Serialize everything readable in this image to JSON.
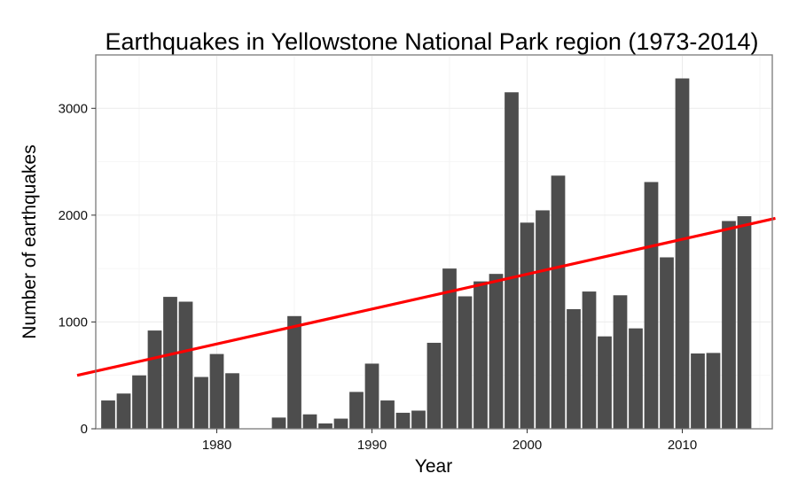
{
  "chart_data": {
    "type": "bar",
    "title": "Earthquakes in Yellowstone National Park region (1973-2014)",
    "xlabel": "Year",
    "ylabel": "Number of earthquakes",
    "x": [
      1973,
      1974,
      1975,
      1976,
      1977,
      1978,
      1979,
      1980,
      1981,
      1982,
      1983,
      1984,
      1985,
      1986,
      1987,
      1988,
      1989,
      1990,
      1991,
      1992,
      1993,
      1994,
      1995,
      1996,
      1997,
      1998,
      1999,
      2000,
      2001,
      2002,
      2003,
      2004,
      2005,
      2006,
      2007,
      2008,
      2009,
      2010,
      2011,
      2012,
      2013,
      2014
    ],
    "values": [
      265,
      330,
      500,
      920,
      1235,
      1190,
      485,
      700,
      520,
      0,
      0,
      105,
      1055,
      135,
      50,
      95,
      345,
      610,
      265,
      150,
      170,
      805,
      1500,
      1240,
      1380,
      1450,
      3150,
      1930,
      2045,
      2370,
      1120,
      1285,
      865,
      1250,
      940,
      2310,
      1605,
      3280,
      705,
      710,
      1945,
      1990
    ],
    "xlim": [
      1972.2,
      2015.8
    ],
    "ylim": [
      0,
      3500
    ],
    "xticks": [
      1980,
      1990,
      2000,
      2010
    ],
    "yticks": [
      0,
      1000,
      2000,
      3000
    ],
    "grid": true,
    "bar_color": "#4d4d4d",
    "trend_line": {
      "color": "#ff0000",
      "x": [
        1971,
        2016
      ],
      "y": [
        500,
        1970
      ]
    }
  }
}
